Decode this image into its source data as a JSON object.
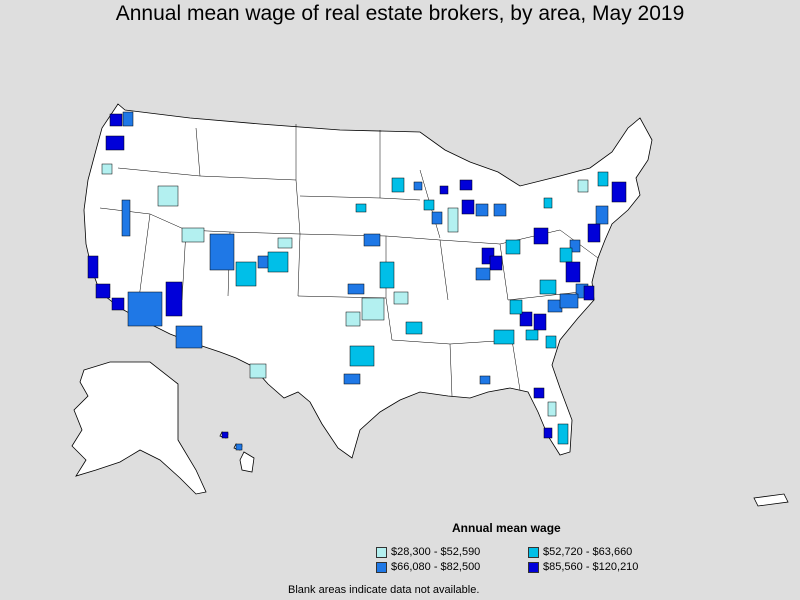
{
  "title": "Annual mean wage of real estate brokers, by area, May 2019",
  "legend": {
    "title": "Annual mean wage",
    "items": [
      {
        "label": "$28,300 - $52,590",
        "color": "#b3f0f0"
      },
      {
        "label": "$52,720 - $63,660",
        "color": "#00bfe8"
      },
      {
        "label": "$66,080 - $82,500",
        "color": "#1f78e6"
      },
      {
        "label": "$85,560 - $120,210",
        "color": "#0000d9"
      }
    ]
  },
  "footnote": "Blank areas indicate data not available.",
  "colors": {
    "background": "#dedede",
    "land": "#ffffff",
    "border": "#000000"
  }
}
